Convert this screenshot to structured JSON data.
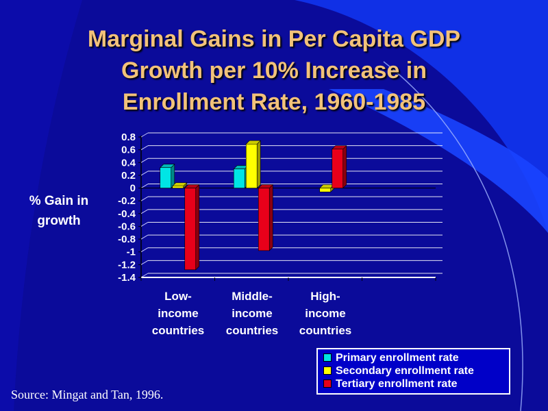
{
  "title_lines": [
    "Marginal Gains in Per Capita GDP",
    "Growth per 10% Increase in",
    "Enrollment Rate, 1960-1985"
  ],
  "ylabel_lines": [
    "% Gain in",
    "growth"
  ],
  "source": "Source: Mingat and Tan, 1996.",
  "category_lines": [
    [
      "Low-",
      "income",
      "countries"
    ],
    [
      "Middle-",
      "income",
      "countries"
    ],
    [
      "High-",
      "income",
      "countries"
    ]
  ],
  "colors": {
    "background": "#0a0a8c",
    "title": "#f2c27a",
    "primary": "#00e5e5",
    "secondary": "#ffff00",
    "tertiary": "#e8001a"
  },
  "chart_data": {
    "type": "bar",
    "title": "Marginal Gains in Per Capita GDP Growth per 10% Increase in Enrollment Rate, 1960-1985",
    "ylabel": "% Gain in growth",
    "xlabel": "",
    "categories": [
      "Low-income countries",
      "Middle-income countries",
      "High-income countries"
    ],
    "series": [
      {
        "name": "Primary enrollment rate",
        "values": [
          0.32,
          0.3,
          0
        ],
        "color": "#00e5e5"
      },
      {
        "name": "Secondary enrollment rate",
        "values": [
          0.03,
          0.69,
          -0.06
        ],
        "color": "#ffff00"
      },
      {
        "name": "Tertiary enrollment rate",
        "values": [
          -1.28,
          -0.98,
          0.61
        ],
        "color": "#e8001a"
      }
    ],
    "yticks": [
      "0.8",
      "0.6",
      "0.4",
      "0.2",
      "0",
      "-0.2",
      "-0.4",
      "-0.6",
      "-0.8",
      "-1",
      "-1.2",
      "-1.4"
    ],
    "ylim": [
      -1.4,
      0.8
    ],
    "grid": true,
    "three_d": true,
    "legend_position": "bottom-right"
  }
}
